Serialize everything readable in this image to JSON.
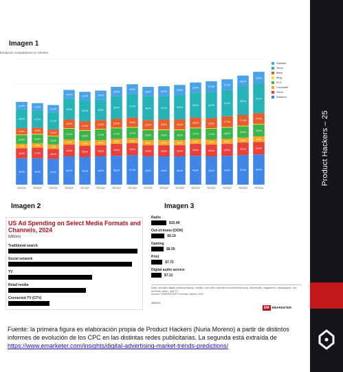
{
  "sidebar": {
    "title": "Product Hackers – 25"
  },
  "labels": {
    "image1": "Imagen 1",
    "image2": "Imagen 2",
    "image3": "Imagen 3"
  },
  "chart_title": "Evolución competidores vs clientes",
  "chart_data": {
    "type": "bar",
    "stacked": true,
    "categories": [
      "2020Q1",
      "2020Q2",
      "2020Q3",
      "2020Q4",
      "2021Q1",
      "2021Q2",
      "2021Q3",
      "2021Q4",
      "2022Q1",
      "2022Q2",
      "2022Q3",
      "2022Q4",
      "2023Q1",
      "2023Q2",
      "2023Q3",
      "2023Q4"
    ],
    "ylim": [
      0,
      200
    ],
    "series": [
      {
        "name": "Amazon",
        "color": "#3f86e8",
        "values": [
          42,
          42,
          41,
          45,
          44,
          45,
          46,
          47,
          45,
          45,
          45,
          46,
          45,
          46,
          47,
          48
        ]
      },
      {
        "name": "Otros",
        "color": "#e8413c",
        "values": [
          16,
          17,
          16,
          19,
          18,
          18,
          19,
          19,
          18,
          18,
          18,
          19,
          19,
          19,
          20,
          20
        ]
      },
      {
        "name": "Compartir",
        "color": "#f6a623",
        "values": [
          7,
          7,
          7,
          8,
          8,
          8,
          8,
          8,
          8,
          8,
          8,
          8,
          8,
          8,
          8,
          9
        ]
      },
      {
        "name": "EC1",
        "color": "#3cb44b",
        "values": [
          14,
          14,
          13,
          17,
          16,
          17,
          17,
          17,
          16,
          16,
          16,
          17,
          17,
          18,
          18,
          19
        ]
      },
      {
        "name": "Bing",
        "color": "#f1dd38",
        "values": [
          1,
          1,
          1,
          1,
          1,
          1,
          1,
          1,
          1,
          1,
          1,
          1,
          1,
          1,
          1,
          1
        ]
      },
      {
        "name": "Meta",
        "color": "#e85d2c",
        "values": [
          10,
          10,
          10,
          14,
          14,
          14,
          14,
          15,
          15,
          16,
          16,
          16,
          16,
          17,
          17,
          17
        ]
      },
      {
        "name": "Temu",
        "color": "#26b3b8",
        "values": [
          30,
          27,
          27,
          33,
          34,
          33,
          36,
          37,
          38,
          37,
          39,
          40,
          42,
          42,
          45,
          47
        ]
      },
      {
        "name": "Zalando",
        "color": "#4aa3e6",
        "values": [
          12,
          12,
          12,
          14,
          13,
          14,
          15,
          16,
          15,
          16,
          16,
          16,
          17,
          17,
          18,
          19
        ]
      }
    ]
  },
  "emarketer": {
    "title": "US Ad Spending on Select Media Formats and Channels, 2024",
    "unit": "billions",
    "rows": [
      {
        "label": "Traditional search",
        "value": "$90.73",
        "amount": 90.73
      },
      {
        "label": "Social network",
        "value": "$86.75",
        "amount": 86.75
      },
      {
        "label": "TV",
        "value": "$58.99",
        "amount": 58.99
      },
      {
        "label": "Retail media",
        "value": "$54.48",
        "amount": 54.48
      },
      {
        "label": "Connected TV (CTV)",
        "value": "$28.75",
        "amount": 28.75
      }
    ],
    "rows2": [
      {
        "label": "Radio",
        "value": "$10.49",
        "amount": 10.49
      },
      {
        "label": "Out-of-home (OOH)",
        "value": "$9.19",
        "amount": 9.19
      },
      {
        "label": "Gaming",
        "value": "$8.59",
        "amount": 8.59
      },
      {
        "label": "Print",
        "value": "$7.72",
        "amount": 7.72
      },
      {
        "label": "Digital audio service",
        "value": "$7.12",
        "amount": 7.12
      }
    ],
    "note": "Note: includes digital (desktop/laptop, mobile, and other internet-connected devices), directories, magazines, newspapers, out-of-home, radio, and TV",
    "source": "Source: EMARKETER Forecast, March 2024",
    "id": "285515",
    "brand_mark": "EM",
    "brand": "EMARKETER"
  },
  "footer": {
    "text": "Fuente: la primera figura es elaboración propia de Product Hackers (Nuria Moreno) a partir de distintos informes de evolución de los CPC en las distintas redes publicitarias. La segunda está extraída de",
    "link": "https://www.emarketer.com/insights/digital-advertising-market-trends-predictions/"
  }
}
